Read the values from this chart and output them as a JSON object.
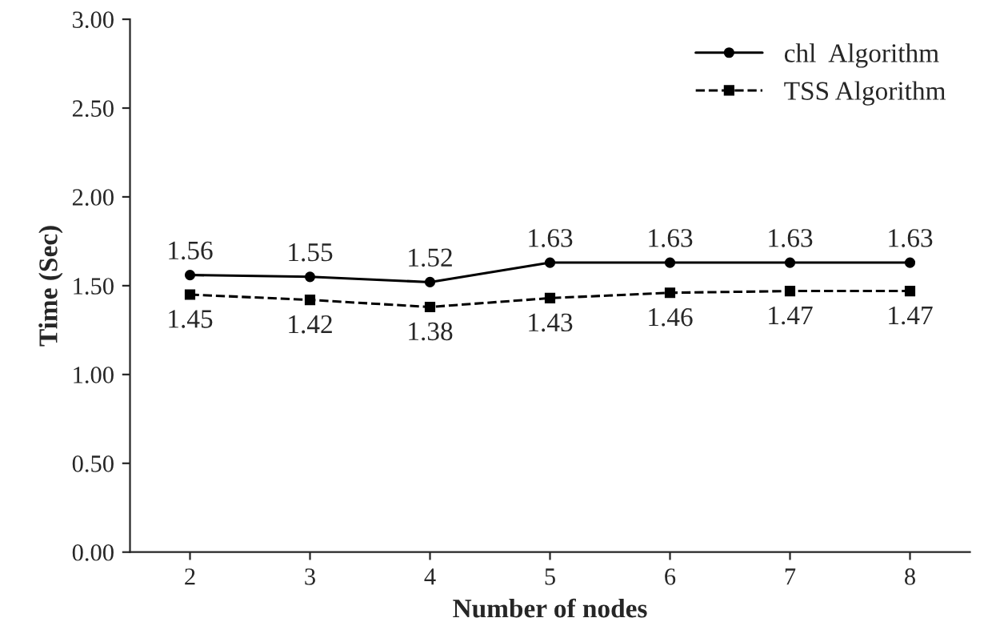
{
  "chart_data": {
    "type": "line",
    "xlabel": "Number of nodes",
    "ylabel": "Time (Sec)",
    "categories": [
      "2",
      "3",
      "4",
      "5",
      "6",
      "7",
      "8"
    ],
    "series": [
      {
        "name": "chl  Algorithm",
        "color": "#000000",
        "values": [
          1.56,
          1.55,
          1.52,
          1.63,
          1.63,
          1.63,
          1.63
        ],
        "marker": "circle",
        "line_style": "solid"
      },
      {
        "name": "TSS Algorithm",
        "color": "#000000",
        "values": [
          1.45,
          1.42,
          1.38,
          1.43,
          1.46,
          1.47,
          1.47
        ],
        "marker": "square",
        "line_style": "dashed"
      }
    ],
    "ylim": [
      0,
      3
    ],
    "yticks": [
      {
        "value": 0,
        "label": "0.00"
      },
      {
        "value": 0.5,
        "label": "0.50"
      },
      {
        "value": 1,
        "label": "1.00"
      },
      {
        "value": 1.5,
        "label": "1.50"
      },
      {
        "value": 2,
        "label": "2.00"
      },
      {
        "value": 2.5,
        "label": "2.50"
      },
      {
        "value": 3,
        "label": "3.00"
      }
    ],
    "data_labels": true,
    "legend": "top right",
    "grid": false
  }
}
